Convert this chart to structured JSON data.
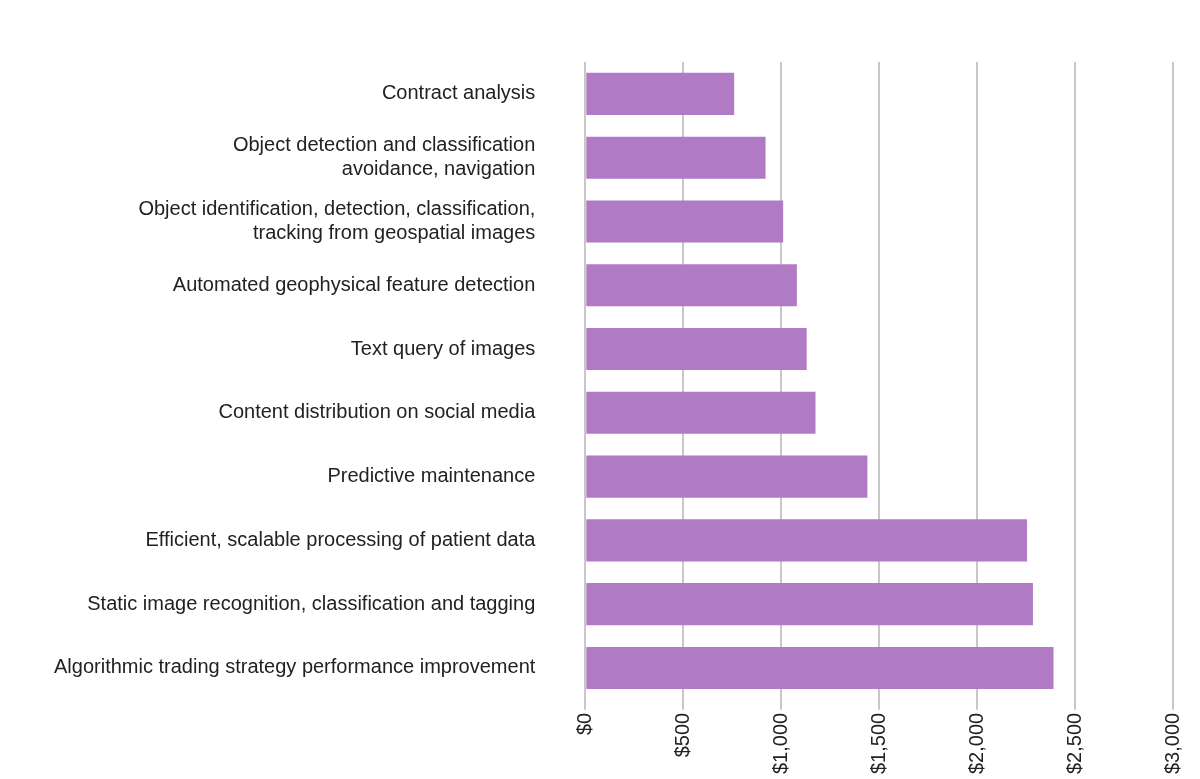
{
  "chart_data": {
    "type": "bar",
    "orientation": "horizontal",
    "categories": [
      "Contract analysis",
      "Object detection and classification\navoidance, navigation",
      "Object identification, detection, classification,\ntracking from geospatial images",
      "Automated geophysical feature detection",
      "Text query of images",
      "Content distribution on social media",
      "Predictive maintenance",
      "Efficient, scalable processing of patient data",
      "Static image recognition, classification and tagging",
      "Algorithmic trading strategy performance improvement"
    ],
    "values": [
      760,
      920,
      1010,
      1080,
      1130,
      1175,
      1440,
      2255,
      2285,
      2390
    ],
    "color": "#b07ac4",
    "xlim": [
      0,
      3000
    ],
    "xticks": [
      {
        "value": 0,
        "label": "$0"
      },
      {
        "value": 500,
        "label": "$500"
      },
      {
        "value": 1000,
        "label": "$1,000"
      },
      {
        "value": 1500,
        "label": "$1,500"
      },
      {
        "value": 2000,
        "label": "$2,000"
      },
      {
        "value": 2500,
        "label": "$2,500"
      },
      {
        "value": 3000,
        "label": "$3,000"
      }
    ],
    "grid": "x",
    "legend": false
  }
}
